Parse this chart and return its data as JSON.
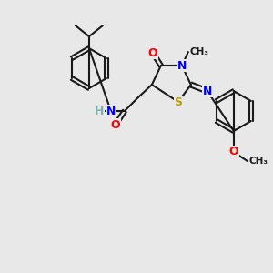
{
  "bg_color": "#e8e8e8",
  "bond_color": "#1a1a1a",
  "bond_width": 1.5,
  "font_size": 9,
  "atoms": {
    "S": {
      "color": "#b8a000",
      "size": 9
    },
    "N": {
      "color": "#0000ff",
      "size": 9
    },
    "O": {
      "color": "#ff0000",
      "size": 9
    },
    "H": {
      "color": "#7fb3b3",
      "size": 9
    },
    "C": {
      "color": "#1a1a1a",
      "size": 9
    }
  }
}
